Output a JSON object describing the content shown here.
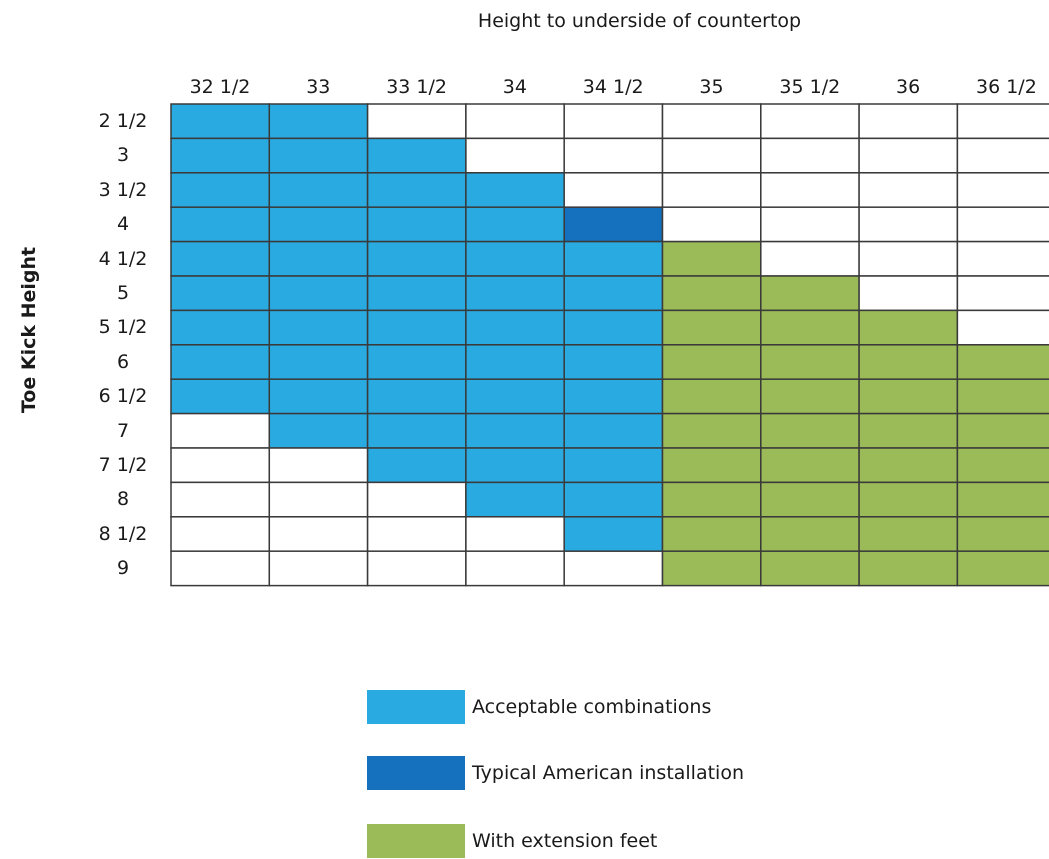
{
  "colors": {
    "acceptable": "#29abe2",
    "typical": "#1570bd",
    "extension": "#9bbb59",
    "none": "#ffffff",
    "border": "#3a3a3a"
  },
  "chart_data": {
    "type": "table",
    "title": "Height to underside of countertop",
    "ylabel": "Toe Kick Height",
    "columns": [
      "32 1/2",
      "33",
      "33 1/2",
      "34",
      "34 1/2",
      "35",
      "35 1/2",
      "36",
      "36 1/2"
    ],
    "rows": [
      "2 1/2",
      "3",
      "3 1/2",
      "4",
      "4 1/2",
      "5",
      "5 1/2",
      "6",
      "6 1/2",
      "7",
      "7 1/2",
      "8",
      "8 1/2",
      "9"
    ],
    "cell_legend": {
      "A": "acceptable",
      "T": "typical",
      "G": "extension",
      "N": "none"
    },
    "cells": [
      [
        "A",
        "A",
        "N",
        "N",
        "N",
        "N",
        "N",
        "N",
        "N"
      ],
      [
        "A",
        "A",
        "A",
        "N",
        "N",
        "N",
        "N",
        "N",
        "N"
      ],
      [
        "A",
        "A",
        "A",
        "A",
        "N",
        "N",
        "N",
        "N",
        "N"
      ],
      [
        "A",
        "A",
        "A",
        "A",
        "T",
        "N",
        "N",
        "N",
        "N"
      ],
      [
        "A",
        "A",
        "A",
        "A",
        "A",
        "G",
        "N",
        "N",
        "N"
      ],
      [
        "A",
        "A",
        "A",
        "A",
        "A",
        "G",
        "G",
        "N",
        "N"
      ],
      [
        "A",
        "A",
        "A",
        "A",
        "A",
        "G",
        "G",
        "G",
        "N"
      ],
      [
        "A",
        "A",
        "A",
        "A",
        "A",
        "G",
        "G",
        "G",
        "G"
      ],
      [
        "A",
        "A",
        "A",
        "A",
        "A",
        "G",
        "G",
        "G",
        "G"
      ],
      [
        "N",
        "A",
        "A",
        "A",
        "A",
        "G",
        "G",
        "G",
        "G"
      ],
      [
        "N",
        "N",
        "A",
        "A",
        "A",
        "G",
        "G",
        "G",
        "G"
      ],
      [
        "N",
        "N",
        "N",
        "A",
        "A",
        "G",
        "G",
        "G",
        "G"
      ],
      [
        "N",
        "N",
        "N",
        "N",
        "A",
        "G",
        "G",
        "G",
        "G"
      ],
      [
        "N",
        "N",
        "N",
        "N",
        "N",
        "G",
        "G",
        "G",
        "G"
      ]
    ],
    "legend": [
      {
        "key": "acceptable",
        "label": "Acceptable combinations"
      },
      {
        "key": "typical",
        "label": "Typical American installation"
      },
      {
        "key": "extension",
        "label": "With extension feet"
      }
    ]
  }
}
